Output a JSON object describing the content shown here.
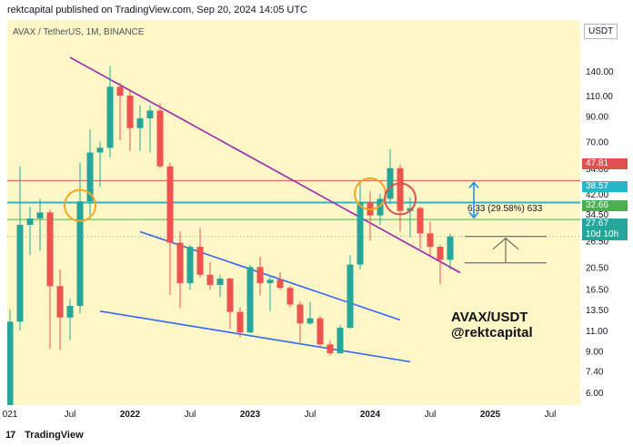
{
  "header": {
    "publisher_line": "rektcapital published on TradingView.com, Sep 20, 2024 14:05 UTC"
  },
  "symbol": {
    "line": "AVAX / TetherUS, 1M, BINANCE"
  },
  "axis": {
    "unit": "USDT"
  },
  "footer": {
    "logo_text": "TradingView",
    "logo_mark": "17"
  },
  "annotation": {
    "watermark_line1": "AVAX/USDT",
    "watermark_line2": "@rektcapital",
    "measure_label": "6.33 (29.58%) 633"
  },
  "price_tags": [
    {
      "value": "47.81",
      "color": "#e05252"
    },
    {
      "value": "38.57",
      "color": "#29b6c8"
    },
    {
      "value": "32.66",
      "color": "#4caf50"
    },
    {
      "value": "27.67",
      "color": "#26a69a"
    },
    {
      "value": "10d 10h",
      "color": "#26a69a"
    }
  ],
  "chart_data": {
    "type": "candlestick",
    "title": "AVAX / TetherUS, 1M, BINANCE",
    "y_scale": "log",
    "y_ticks": [
      140,
      110,
      90,
      70,
      54,
      42,
      34.5,
      26.5,
      20.5,
      16.5,
      13.5,
      11,
      9,
      7.4,
      6
    ],
    "y_tick_labels": [
      "140.00",
      "110.00",
      "90.00",
      "70.00",
      "54.00",
      "42.00",
      "34.50",
      "26.50",
      "20.50",
      "16.50",
      "13.50",
      "11.00",
      "9.00",
      "7.40",
      "6.00"
    ],
    "x_tick_labels": [
      "021",
      "Jul",
      "2022",
      "Jul",
      "2023",
      "Jul",
      "2024",
      "Jul",
      "2025",
      "Jul"
    ],
    "candles": [
      {
        "date": "2021-01",
        "o": 3.5,
        "h": 13.5,
        "l": 3.2,
        "c": 12.0
      },
      {
        "date": "2021-02",
        "o": 12.0,
        "h": 55.0,
        "l": 11.0,
        "c": 31.0
      },
      {
        "date": "2021-03",
        "o": 31.0,
        "h": 37.0,
        "l": 23.0,
        "c": 33.0
      },
      {
        "date": "2021-04",
        "o": 33.0,
        "h": 40.0,
        "l": 24.0,
        "c": 35.0
      },
      {
        "date": "2021-05",
        "o": 35.0,
        "h": 36.0,
        "l": 9.2,
        "c": 17.0
      },
      {
        "date": "2021-06",
        "o": 17.0,
        "h": 20.0,
        "l": 9.1,
        "c": 12.5
      },
      {
        "date": "2021-07",
        "o": 12.5,
        "h": 15.0,
        "l": 10.0,
        "c": 14.0
      },
      {
        "date": "2021-08",
        "o": 14.0,
        "h": 57.0,
        "l": 13.0,
        "c": 39.0
      },
      {
        "date": "2021-09",
        "o": 39.0,
        "h": 79.0,
        "l": 34.0,
        "c": 63.0
      },
      {
        "date": "2021-10",
        "o": 63.0,
        "h": 70.0,
        "l": 45.0,
        "c": 66.0
      },
      {
        "date": "2021-11",
        "o": 66.0,
        "h": 147.0,
        "l": 60.0,
        "c": 120.0
      },
      {
        "date": "2021-12",
        "o": 120.0,
        "h": 125.0,
        "l": 71.0,
        "c": 110.0
      },
      {
        "date": "2022-01",
        "o": 110.0,
        "h": 116.0,
        "l": 64.0,
        "c": 80.0
      },
      {
        "date": "2022-02",
        "o": 80.0,
        "h": 100.0,
        "l": 64.0,
        "c": 88.0
      },
      {
        "date": "2022-03",
        "o": 88.0,
        "h": 100.0,
        "l": 63.0,
        "c": 95.0
      },
      {
        "date": "2022-04",
        "o": 95.0,
        "h": 102.0,
        "l": 54.0,
        "c": 55.0
      },
      {
        "date": "2022-05",
        "o": 55.0,
        "h": 57.0,
        "l": 15.6,
        "c": 26.0
      },
      {
        "date": "2022-06",
        "o": 26.0,
        "h": 29.0,
        "l": 13.7,
        "c": 17.5
      },
      {
        "date": "2022-07",
        "o": 17.5,
        "h": 25.5,
        "l": 16.4,
        "c": 25.0
      },
      {
        "date": "2022-08",
        "o": 25.0,
        "h": 30.0,
        "l": 18.5,
        "c": 19.0
      },
      {
        "date": "2022-09",
        "o": 19.0,
        "h": 21.5,
        "l": 16.4,
        "c": 17.2
      },
      {
        "date": "2022-10",
        "o": 17.2,
        "h": 19.0,
        "l": 15.3,
        "c": 18.3
      },
      {
        "date": "2022-11",
        "o": 18.3,
        "h": 18.5,
        "l": 11.2,
        "c": 13.2
      },
      {
        "date": "2022-12",
        "o": 13.2,
        "h": 13.8,
        "l": 10.3,
        "c": 10.8
      },
      {
        "date": "2023-01",
        "o": 10.8,
        "h": 21.0,
        "l": 10.7,
        "c": 20.5
      },
      {
        "date": "2023-02",
        "o": 20.5,
        "h": 22.7,
        "l": 15.5,
        "c": 17.5
      },
      {
        "date": "2023-03",
        "o": 17.5,
        "h": 18.8,
        "l": 13.3,
        "c": 18.1
      },
      {
        "date": "2023-04",
        "o": 18.1,
        "h": 19.5,
        "l": 16.4,
        "c": 16.7
      },
      {
        "date": "2023-05",
        "o": 16.7,
        "h": 17.0,
        "l": 13.8,
        "c": 14.2
      },
      {
        "date": "2023-06",
        "o": 14.2,
        "h": 14.6,
        "l": 9.8,
        "c": 11.8
      },
      {
        "date": "2023-07",
        "o": 11.8,
        "h": 14.6,
        "l": 11.6,
        "c": 12.4
      },
      {
        "date": "2023-08",
        "o": 12.4,
        "h": 12.7,
        "l": 9.4,
        "c": 9.6
      },
      {
        "date": "2023-09",
        "o": 9.6,
        "h": 10.0,
        "l": 8.6,
        "c": 8.8
      },
      {
        "date": "2023-10",
        "o": 8.8,
        "h": 11.6,
        "l": 8.8,
        "c": 11.3
      },
      {
        "date": "2023-11",
        "o": 11.3,
        "h": 23.0,
        "l": 11.2,
        "c": 21.0
      },
      {
        "date": "2023-12",
        "o": 21.0,
        "h": 48.0,
        "l": 20.0,
        "c": 38.7
      },
      {
        "date": "2024-01",
        "o": 38.7,
        "h": 43.0,
        "l": 26.5,
        "c": 34.0
      },
      {
        "date": "2024-02",
        "o": 34.0,
        "h": 42.0,
        "l": 31.0,
        "c": 40.0
      },
      {
        "date": "2024-03",
        "o": 40.0,
        "h": 65.0,
        "l": 38.0,
        "c": 54.0
      },
      {
        "date": "2024-04",
        "o": 54.0,
        "h": 56.0,
        "l": 29.0,
        "c": 35.5
      },
      {
        "date": "2024-05",
        "o": 35.5,
        "h": 40.5,
        "l": 27.5,
        "c": 36.5
      },
      {
        "date": "2024-06",
        "o": 36.5,
        "h": 37.0,
        "l": 24.5,
        "c": 28.5
      },
      {
        "date": "2024-07",
        "o": 28.5,
        "h": 32.0,
        "l": 23.0,
        "c": 25.0
      },
      {
        "date": "2024-08",
        "o": 25.0,
        "h": 25.5,
        "l": 17.3,
        "c": 22.0
      },
      {
        "date": "2024-09",
        "o": 22.0,
        "h": 28.4,
        "l": 20.0,
        "c": 27.67
      }
    ],
    "horizontal_levels": [
      {
        "price": 47.81,
        "color": "#e05252"
      },
      {
        "price": 38.57,
        "color": "#29b6c8"
      },
      {
        "price": 32.66,
        "color": "#4caf50"
      }
    ],
    "trendlines": [
      {
        "color": "#9c27b0",
        "from": {
          "date": "2021-07",
          "price": 160
        },
        "to": {
          "date": "2024-10",
          "price": 19.4
        }
      },
      {
        "color": "#3366ff",
        "from": {
          "date": "2022-02",
          "price": 29
        },
        "to": {
          "date": "2024-04",
          "price": 12.2
        }
      },
      {
        "color": "#3366ff",
        "from": {
          "date": "2021-10",
          "price": 13.3
        },
        "to": {
          "date": "2024-05",
          "price": 8.1
        }
      }
    ],
    "circles": [
      {
        "date": "2021-08",
        "price": 37.5,
        "color": "#f5a623"
      },
      {
        "date": "2024-01",
        "price": 42.0,
        "color": "#f5a623"
      },
      {
        "date": "2024-04",
        "price": 40.0,
        "color": "#e05252"
      }
    ],
    "measure": {
      "from_price": 21.34,
      "to_price": 27.67,
      "change": 6.33,
      "percent": 29.58,
      "ticks": 633
    },
    "grid": false,
    "legend": "none"
  }
}
